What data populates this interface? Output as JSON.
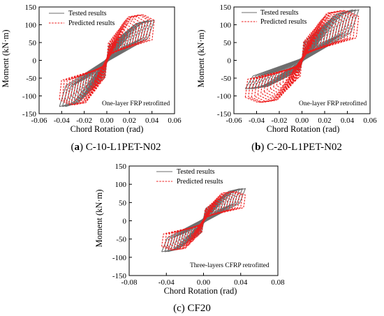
{
  "chart_data": [
    {
      "type": "line",
      "caption_letter": "a",
      "caption_name": "C-10-L1PET-N02",
      "xlabel": "Chord Rotation (rad)",
      "ylabel": "Moment (kN·m)",
      "xlim": [
        -0.06,
        0.06
      ],
      "ylim": [
        -150,
        150
      ],
      "xticks": [
        "-0.06",
        "-0.04",
        "-0.02",
        "0.00",
        "0.02",
        "0.04",
        "0.06"
      ],
      "yticks": [
        "150",
        "100",
        "50",
        "0",
        "-50",
        "-100",
        "-150"
      ],
      "legend": [
        "Tested results",
        "Predicted results"
      ],
      "annotation": "One-layer FRP retrofitted",
      "series": [
        {
          "name": "Tested results",
          "color": "#6e6e6e",
          "style": "solid",
          "peak_x": 0.042,
          "peak_y_pos": 112,
          "peak_y_neg": -130,
          "cycles": 16
        },
        {
          "name": "Predicted results",
          "color": "#ee1c1c",
          "style": "dashed",
          "peak_x": 0.042,
          "peak_y_pos": 128,
          "peak_y_neg": -125,
          "cycles": 16
        }
      ]
    },
    {
      "type": "line",
      "caption_letter": "b",
      "caption_name": "C-20-L1PET-N02",
      "xlabel": "Chord Rotation (rad)",
      "ylabel": "Moment (kN·m)",
      "xlim": [
        -0.06,
        0.06
      ],
      "ylim": [
        -150,
        150
      ],
      "xticks": [
        "-0.06",
        "-0.04",
        "-0.02",
        "0.00",
        "0.02",
        "0.04",
        "0.06"
      ],
      "yticks": [
        "150",
        "100",
        "50",
        "0",
        "-50",
        "-100",
        "-150"
      ],
      "legend": [
        "Tested results",
        "Predicted results"
      ],
      "annotation": "One-layer FRP retrofitted",
      "series": [
        {
          "name": "Tested results",
          "color": "#6e6e6e",
          "style": "solid",
          "peak_x": 0.05,
          "peak_y_pos": 142,
          "peak_y_neg": -80,
          "cycles": 18
        },
        {
          "name": "Predicted results",
          "color": "#ee1c1c",
          "style": "dashed",
          "peak_x": 0.05,
          "peak_y_pos": 140,
          "peak_y_neg": -118,
          "cycles": 18
        }
      ]
    },
    {
      "type": "line",
      "caption_letter": "",
      "caption_name": "(c) CF20",
      "xlabel": "Chord Rotation (rad)",
      "ylabel": "Moment (kN·m)",
      "xlim": [
        -0.08,
        0.08
      ],
      "ylim": [
        -150,
        150
      ],
      "xticks": [
        "-0.08",
        "-0.04",
        "0.00",
        "0.04",
        "0.08"
      ],
      "yticks": [
        "150",
        "100",
        "50",
        "0",
        "-50",
        "-100",
        "-150"
      ],
      "legend": [
        "Tested results",
        "Predicted results"
      ],
      "annotation": "Three-layers CFRP retrofitted",
      "series": [
        {
          "name": "Tested results",
          "color": "#6e6e6e",
          "style": "solid",
          "peak_x": 0.045,
          "peak_y_pos": 88,
          "peak_y_neg": -85,
          "cycles": 14
        },
        {
          "name": "Predicted results",
          "color": "#ee1c1c",
          "style": "dashed",
          "peak_x": 0.045,
          "peak_y_pos": 80,
          "peak_y_neg": -80,
          "cycles": 14
        }
      ]
    }
  ]
}
